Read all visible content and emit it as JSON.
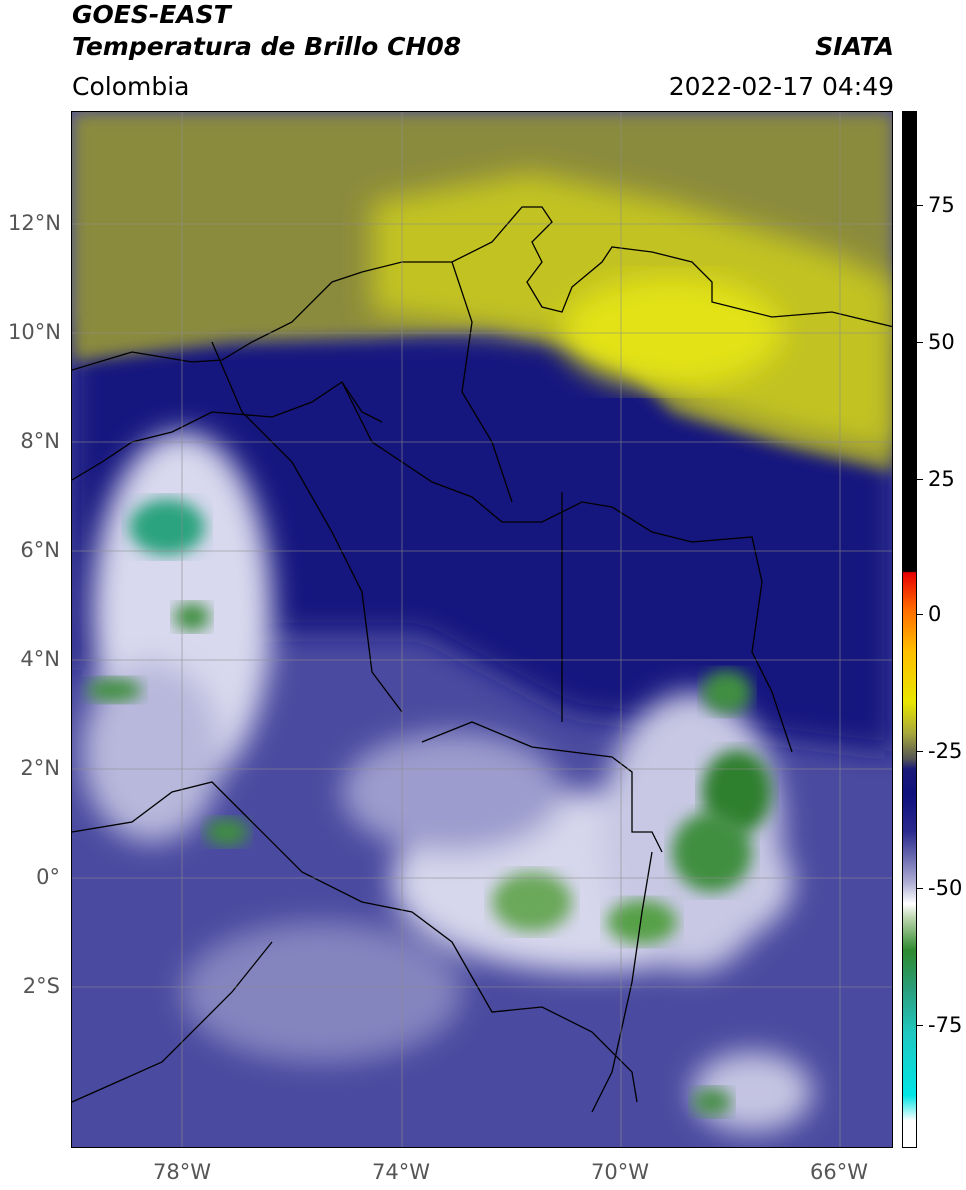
{
  "header": {
    "title_line1": "GOES-EAST",
    "title_line2": "Temperatura de Brillo CH08",
    "source": "SIATA",
    "region": "Colombia",
    "datetime": "2022-02-17 04:49"
  },
  "map": {
    "lat_labels": [
      "12°N",
      "10°N",
      "8°N",
      "6°N",
      "4°N",
      "2°N",
      "0°",
      "2°S"
    ],
    "lon_labels": [
      "78°W",
      "74°W",
      "70°W",
      "66°W"
    ]
  },
  "colorbar": {
    "ticks": [
      "75",
      "50",
      "25",
      "0",
      "-25",
      "-50",
      "-75"
    ],
    "colors": {
      "warm_top": "#000000",
      "red": "#e60000",
      "yellow": "#e8e600",
      "dark_blue": "#10107e",
      "white": "#ffffff",
      "green": "#2e8a2e",
      "cyan": "#00e5e5"
    }
  }
}
